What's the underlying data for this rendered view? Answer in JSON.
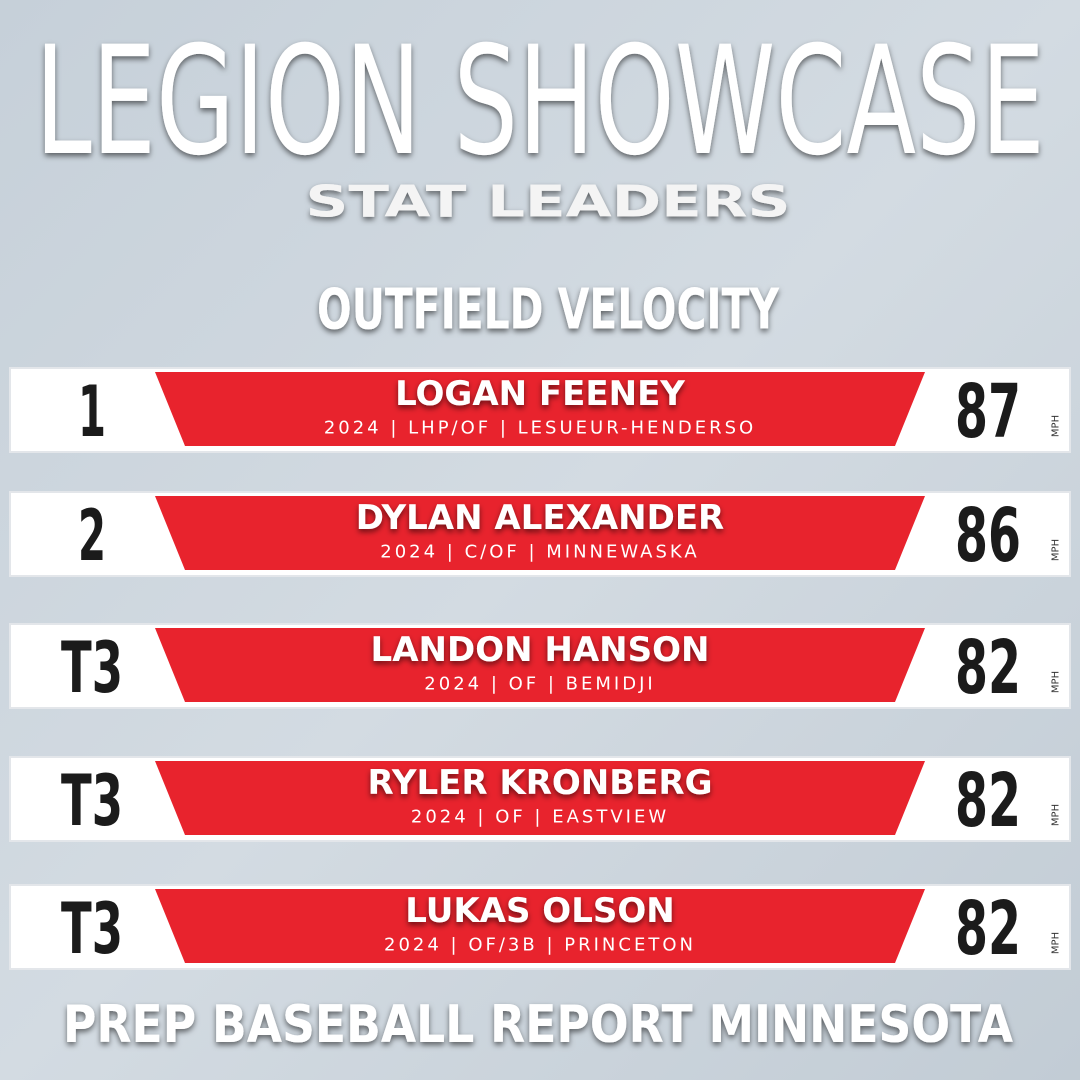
{
  "header": {
    "title": "LEGION SHOWCASE",
    "subtitle": "STAT LEADERS",
    "category": "OUTFIELD VELOCITY"
  },
  "unit": "MPH",
  "leaders": [
    {
      "rank": "1",
      "name": "LOGAN FEENEY",
      "info": "2024 | LHP/OF | LESUEUR-HENDERSO",
      "value": "87"
    },
    {
      "rank": "2",
      "name": "DYLAN ALEXANDER",
      "info": "2024 | C/OF | MINNEWASKA",
      "value": "86"
    },
    {
      "rank": "T3",
      "name": "LANDON HANSON",
      "info": "2024 | OF | BEMIDJI",
      "value": "82"
    },
    {
      "rank": "T3",
      "name": "RYLER KRONBERG",
      "info": "2024 | OF | EASTVIEW",
      "value": "82"
    },
    {
      "rank": "T3",
      "name": "LUKAS OLSON",
      "info": "2024 | OF/3B | PRINCETON",
      "value": "82"
    }
  ],
  "footer": "PREP BASEBALL REPORT MINNESOTA"
}
